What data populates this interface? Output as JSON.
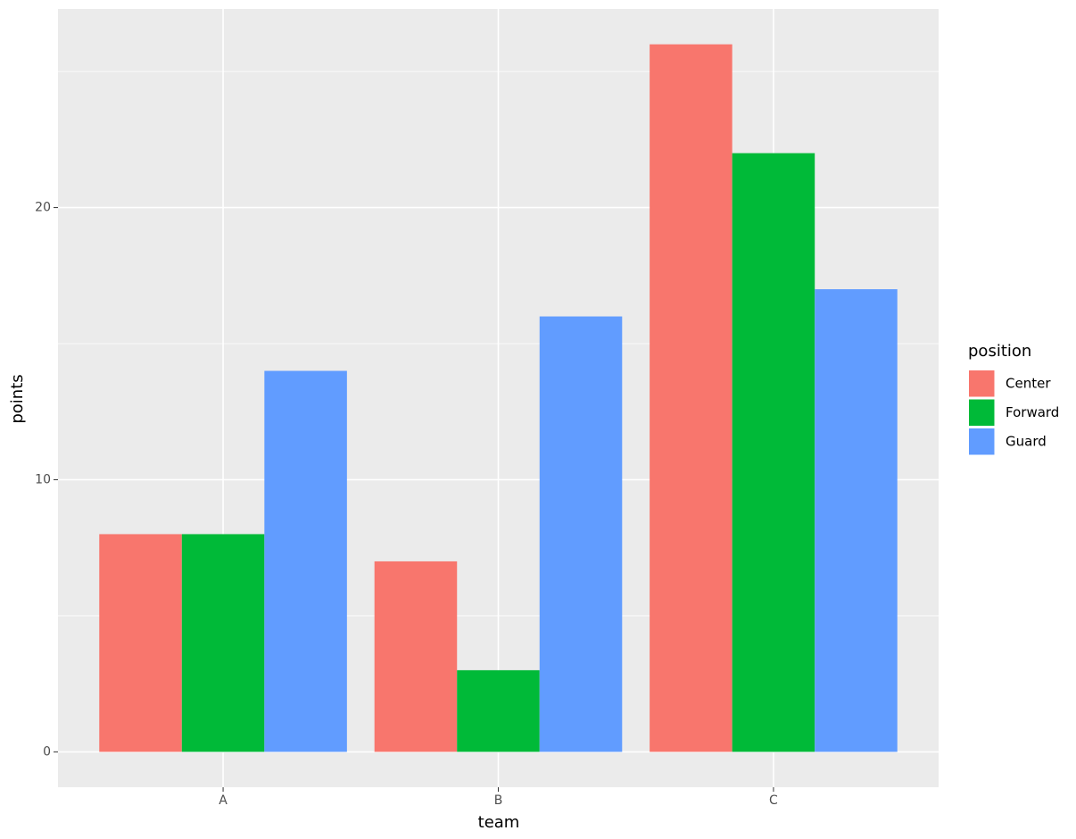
{
  "chart_data": {
    "type": "bar",
    "x_label": "team",
    "y_label": "points",
    "legend_title": "position",
    "categories": [
      "A",
      "B",
      "C"
    ],
    "series": [
      {
        "name": "Center",
        "color": "#F8766D",
        "values": [
          8,
          7,
          26
        ]
      },
      {
        "name": "Forward",
        "color": "#00BA38",
        "values": [
          8,
          3,
          22
        ]
      },
      {
        "name": "Guard",
        "color": "#619CFF",
        "values": [
          14,
          16,
          17
        ]
      }
    ],
    "ylim": [
      -1.3,
      27.3
    ],
    "yticks": [
      0,
      10,
      20
    ],
    "minor_yticks": [
      5,
      15,
      25
    ],
    "grid": true,
    "legend": "right"
  }
}
